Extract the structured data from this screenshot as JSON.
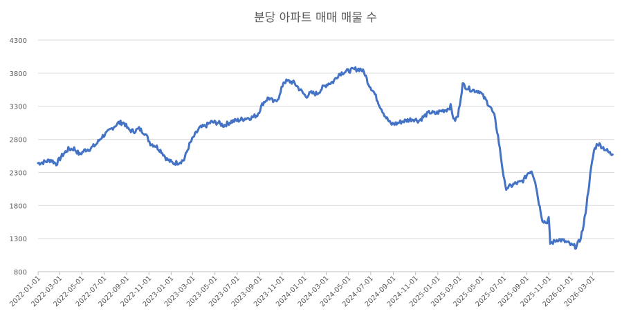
{
  "chart_data": {
    "type": "line",
    "title": "분당 아파트 매매 매물 수",
    "xlabel": "",
    "ylabel": "",
    "ylim": [
      800,
      4300
    ],
    "yticks": [
      "800",
      "1300",
      "1800",
      "2300",
      "2800",
      "3300",
      "3800",
      "4300"
    ],
    "xlim": [
      "2022-01-01",
      "2026-04-30"
    ],
    "xticks": [
      "2022-01-01",
      "2022-03-01",
      "2022-05-01",
      "2022-07-01",
      "2022-09-01",
      "2022-11-01",
      "2023-01-01",
      "2023-03-01",
      "2023-05-01",
      "2023-07-01",
      "2023-09-01",
      "2023-11-01",
      "2024-01-01",
      "2024-03-01",
      "2024-05-01",
      "2024-07-01",
      "2024-09-01",
      "2024-11-01",
      "2025-01-01",
      "2025-03-01",
      "2025-05-01",
      "2025-07-01",
      "2025-09-01",
      "2025-11-01",
      "2026-01-01",
      "2026-03-01"
    ],
    "grid": true,
    "legend": "none",
    "line_color": "#4472c4",
    "series": [
      {
        "name": "",
        "points": [
          [
            "2022-01-01",
            2440
          ],
          [
            "2022-01-20",
            2460
          ],
          [
            "2022-02-05",
            2490
          ],
          [
            "2022-02-20",
            2430
          ],
          [
            "2022-03-10",
            2570
          ],
          [
            "2022-03-25",
            2650
          ],
          [
            "2022-04-10",
            2660
          ],
          [
            "2022-04-25",
            2570
          ],
          [
            "2022-05-10",
            2640
          ],
          [
            "2022-05-25",
            2660
          ],
          [
            "2022-06-10",
            2730
          ],
          [
            "2022-06-25",
            2840
          ],
          [
            "2022-07-10",
            2900
          ],
          [
            "2022-07-25",
            2980
          ],
          [
            "2022-08-10",
            3050
          ],
          [
            "2022-08-25",
            3050
          ],
          [
            "2022-09-05",
            2950
          ],
          [
            "2022-09-20",
            2920
          ],
          [
            "2022-10-05",
            2960
          ],
          [
            "2022-10-20",
            2900
          ],
          [
            "2022-11-05",
            2740
          ],
          [
            "2022-11-20",
            2700
          ],
          [
            "2022-12-05",
            2620
          ],
          [
            "2022-12-20",
            2500
          ],
          [
            "2023-01-05",
            2440
          ],
          [
            "2023-01-20",
            2450
          ],
          [
            "2023-02-05",
            2490
          ],
          [
            "2023-02-20",
            2720
          ],
          [
            "2023-03-05",
            2850
          ],
          [
            "2023-03-20",
            2970
          ],
          [
            "2023-04-05",
            3000
          ],
          [
            "2023-04-20",
            3060
          ],
          [
            "2023-05-10",
            3050
          ],
          [
            "2023-05-25",
            3010
          ],
          [
            "2023-06-15",
            3070
          ],
          [
            "2023-07-05",
            3090
          ],
          [
            "2023-07-25",
            3120
          ],
          [
            "2023-08-10",
            3130
          ],
          [
            "2023-08-25",
            3170
          ],
          [
            "2023-09-10",
            3350
          ],
          [
            "2023-09-25",
            3430
          ],
          [
            "2023-10-10",
            3360
          ],
          [
            "2023-10-25",
            3450
          ],
          [
            "2023-11-05",
            3670
          ],
          [
            "2023-11-20",
            3680
          ],
          [
            "2023-12-05",
            3650
          ],
          [
            "2023-12-20",
            3550
          ],
          [
            "2024-01-05",
            3450
          ],
          [
            "2024-01-20",
            3500
          ],
          [
            "2024-02-05",
            3490
          ],
          [
            "2024-02-20",
            3580
          ],
          [
            "2024-03-05",
            3640
          ],
          [
            "2024-03-20",
            3670
          ],
          [
            "2024-04-05",
            3790
          ],
          [
            "2024-04-20",
            3820
          ],
          [
            "2024-05-05",
            3840
          ],
          [
            "2024-05-20",
            3860
          ],
          [
            "2024-06-05",
            3860
          ],
          [
            "2024-06-15",
            3790
          ],
          [
            "2024-06-25",
            3640
          ],
          [
            "2024-07-10",
            3510
          ],
          [
            "2024-07-25",
            3320
          ],
          [
            "2024-08-10",
            3150
          ],
          [
            "2024-08-25",
            3030
          ],
          [
            "2024-09-10",
            3040
          ],
          [
            "2024-09-25",
            3070
          ],
          [
            "2024-10-10",
            3090
          ],
          [
            "2024-10-25",
            3110
          ],
          [
            "2024-11-10",
            3080
          ],
          [
            "2024-11-25",
            3150
          ],
          [
            "2024-12-10",
            3210
          ],
          [
            "2024-12-25",
            3190
          ],
          [
            "2025-01-10",
            3230
          ],
          [
            "2025-01-25",
            3250
          ],
          [
            "2025-02-05",
            3300
          ],
          [
            "2025-02-15",
            3080
          ],
          [
            "2025-02-25",
            3150
          ],
          [
            "2025-03-10",
            3630
          ],
          [
            "2025-03-25",
            3570
          ],
          [
            "2025-04-10",
            3540
          ],
          [
            "2025-04-25",
            3530
          ],
          [
            "2025-05-10",
            3410
          ],
          [
            "2025-05-25",
            3290
          ],
          [
            "2025-06-05",
            3150
          ],
          [
            "2025-06-15",
            2850
          ],
          [
            "2025-06-25",
            2450
          ],
          [
            "2025-07-05",
            2070
          ],
          [
            "2025-07-15",
            2080
          ],
          [
            "2025-08-01",
            2130
          ],
          [
            "2025-08-15",
            2150
          ],
          [
            "2025-08-25",
            2190
          ],
          [
            "2025-09-05",
            2290
          ],
          [
            "2025-09-15",
            2330
          ],
          [
            "2025-09-25",
            2170
          ],
          [
            "2025-10-05",
            1840
          ],
          [
            "2025-10-15",
            1580
          ],
          [
            "2025-10-25",
            1540
          ],
          [
            "2025-11-01",
            1600
          ],
          [
            "2025-11-05",
            1230
          ],
          [
            "2025-11-15",
            1250
          ],
          [
            "2025-11-25",
            1290
          ],
          [
            "2025-12-10",
            1270
          ],
          [
            "2025-12-25",
            1230
          ],
          [
            "2026-01-05",
            1190
          ],
          [
            "2026-01-15",
            1180
          ],
          [
            "2026-01-25",
            1270
          ],
          [
            "2026-02-05",
            1500
          ],
          [
            "2026-02-15",
            1920
          ],
          [
            "2026-02-25",
            2350
          ],
          [
            "2026-03-05",
            2630
          ],
          [
            "2026-03-15",
            2740
          ],
          [
            "2026-03-25",
            2700
          ],
          [
            "2026-04-05",
            2650
          ],
          [
            "2026-04-15",
            2600
          ],
          [
            "2026-04-25",
            2570
          ]
        ]
      }
    ]
  }
}
